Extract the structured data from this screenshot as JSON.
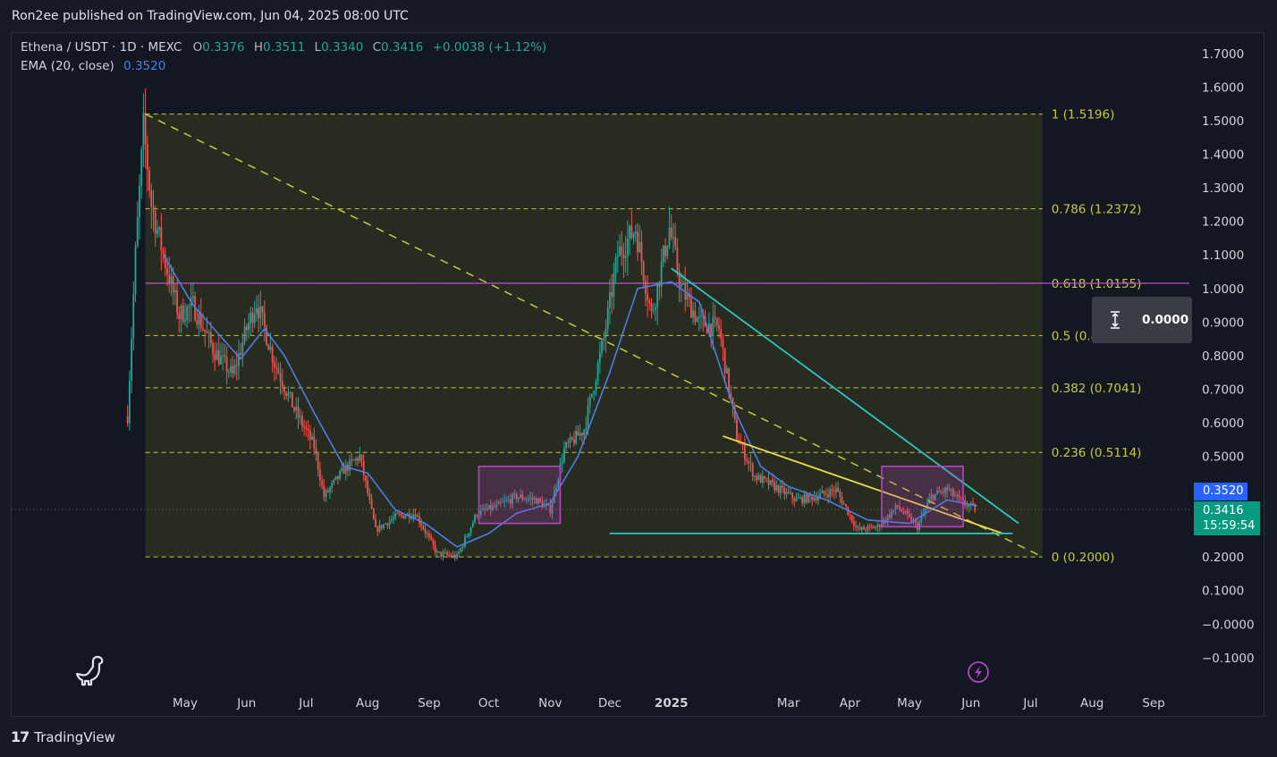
{
  "header": {
    "publisher": "Ron2ee published on TradingView.com, Jun 04, 2025 08:00 UTC"
  },
  "legend": {
    "symbol": "Ethena / USDT · 1D · MEXC",
    "open_key": "O",
    "open": "0.3376",
    "high_key": "H",
    "high": "0.3511",
    "low_key": "L",
    "low": "0.3340",
    "close_key": "C",
    "close": "0.3416",
    "change": "+0.0038 (+1.12%)",
    "ema_label": "EMA (20, close)",
    "ema_value": "0.3520"
  },
  "price_tags": {
    "ema": "0.3520",
    "last": "0.3416",
    "countdown": "15:59:54"
  },
  "measure_tool": {
    "value": "0.0000"
  },
  "footer": {
    "brand": "TradingView",
    "logo_icon": "tradingview-logo-icon"
  },
  "colors": {
    "up": "#26a69a",
    "down": "#ef5350",
    "ema": "#4a7ee8",
    "fib": "#c9c93b",
    "cyan": "#2ec4c4",
    "yellow": "#e8d94a",
    "magenta": "#b545c6"
  },
  "chart_data": {
    "type": "candlestick",
    "y_axis": {
      "range": [
        -0.1,
        1.7
      ],
      "ticks": [
        1.7,
        1.6,
        1.5,
        1.4,
        1.3,
        1.2,
        1.1,
        1.0,
        0.9,
        0.8,
        0.7,
        0.6,
        0.5,
        0.2,
        0.1,
        0.0,
        -0.1
      ],
      "tick_labels": [
        "1.7000",
        "1.6000",
        "1.5000",
        "1.4000",
        "1.3000",
        "1.2000",
        "1.1000",
        "1.0000",
        "0.9000",
        "0.8000",
        "0.7000",
        "0.6000",
        "0.5000",
        "0.2000",
        "0.1000",
        "−0.0000",
        "−0.1000"
      ]
    },
    "x_axis": {
      "start": "2024-04-02",
      "end": "2025-09-28",
      "ticks": [
        {
          "label": "May",
          "date": "2024-05-01"
        },
        {
          "label": "Jun",
          "date": "2024-06-01"
        },
        {
          "label": "Jul",
          "date": "2024-07-01"
        },
        {
          "label": "Aug",
          "date": "2024-08-01"
        },
        {
          "label": "Sep",
          "date": "2024-09-01"
        },
        {
          "label": "Oct",
          "date": "2024-10-01"
        },
        {
          "label": "Nov",
          "date": "2024-11-01"
        },
        {
          "label": "Dec",
          "date": "2024-12-01"
        },
        {
          "label": "2025",
          "date": "2025-01-01",
          "bold": true
        },
        {
          "label": "Mar",
          "date": "2025-03-01"
        },
        {
          "label": "Apr",
          "date": "2025-04-01"
        },
        {
          "label": "May",
          "date": "2025-05-01"
        },
        {
          "label": "Jun",
          "date": "2025-06-01"
        },
        {
          "label": "Jul",
          "date": "2025-07-01"
        },
        {
          "label": "Aug",
          "date": "2025-08-01"
        },
        {
          "label": "Sep",
          "date": "2025-09-01"
        }
      ]
    },
    "price_path": [
      {
        "date": "2024-04-02",
        "price": 0.62
      },
      {
        "date": "2024-04-06",
        "price": 1.1
      },
      {
        "date": "2024-04-10",
        "price": 1.48
      },
      {
        "date": "2024-04-14",
        "price": 1.25
      },
      {
        "date": "2024-04-20",
        "price": 1.1
      },
      {
        "date": "2024-04-28",
        "price": 0.92
      },
      {
        "date": "2024-05-05",
        "price": 0.95
      },
      {
        "date": "2024-05-15",
        "price": 0.82
      },
      {
        "date": "2024-05-25",
        "price": 0.74
      },
      {
        "date": "2024-06-01",
        "price": 0.88
      },
      {
        "date": "2024-06-06",
        "price": 0.96
      },
      {
        "date": "2024-06-15",
        "price": 0.78
      },
      {
        "date": "2024-06-25",
        "price": 0.64
      },
      {
        "date": "2024-07-05",
        "price": 0.53
      },
      {
        "date": "2024-07-10",
        "price": 0.38
      },
      {
        "date": "2024-07-20",
        "price": 0.46
      },
      {
        "date": "2024-07-28",
        "price": 0.5
      },
      {
        "date": "2024-08-05",
        "price": 0.28
      },
      {
        "date": "2024-08-15",
        "price": 0.32
      },
      {
        "date": "2024-08-25",
        "price": 0.33
      },
      {
        "date": "2024-09-05",
        "price": 0.21
      },
      {
        "date": "2024-09-15",
        "price": 0.2
      },
      {
        "date": "2024-09-25",
        "price": 0.33
      },
      {
        "date": "2024-10-05",
        "price": 0.35
      },
      {
        "date": "2024-10-15",
        "price": 0.38
      },
      {
        "date": "2024-10-25",
        "price": 0.37
      },
      {
        "date": "2024-11-01",
        "price": 0.34
      },
      {
        "date": "2024-11-08",
        "price": 0.52
      },
      {
        "date": "2024-11-18",
        "price": 0.58
      },
      {
        "date": "2024-11-28",
        "price": 0.85
      },
      {
        "date": "2024-12-05",
        "price": 1.1
      },
      {
        "date": "2024-12-14",
        "price": 1.18
      },
      {
        "date": "2024-12-22",
        "price": 0.92
      },
      {
        "date": "2024-12-31",
        "price": 1.18
      },
      {
        "date": "2025-01-06",
        "price": 1.0
      },
      {
        "date": "2025-01-15",
        "price": 0.9
      },
      {
        "date": "2025-01-25",
        "price": 0.88
      },
      {
        "date": "2025-02-03",
        "price": 0.56
      },
      {
        "date": "2025-02-12",
        "price": 0.44
      },
      {
        "date": "2025-02-22",
        "price": 0.41
      },
      {
        "date": "2025-03-05",
        "price": 0.37
      },
      {
        "date": "2025-03-15",
        "price": 0.38
      },
      {
        "date": "2025-03-25",
        "price": 0.4
      },
      {
        "date": "2025-04-05",
        "price": 0.28
      },
      {
        "date": "2025-04-15",
        "price": 0.29
      },
      {
        "date": "2025-04-25",
        "price": 0.35
      },
      {
        "date": "2025-05-05",
        "price": 0.29
      },
      {
        "date": "2025-05-12",
        "price": 0.38
      },
      {
        "date": "2025-05-20",
        "price": 0.4
      },
      {
        "date": "2025-05-28",
        "price": 0.36
      },
      {
        "date": "2025-06-04",
        "price": 0.3416
      }
    ],
    "ema_path": [
      {
        "date": "2024-04-20",
        "price": 1.1
      },
      {
        "date": "2024-05-05",
        "price": 0.95
      },
      {
        "date": "2024-05-20",
        "price": 0.85
      },
      {
        "date": "2024-05-29",
        "price": 0.79
      },
      {
        "date": "2024-06-10",
        "price": 0.88
      },
      {
        "date": "2024-06-20",
        "price": 0.8
      },
      {
        "date": "2024-07-05",
        "price": 0.63
      },
      {
        "date": "2024-07-20",
        "price": 0.47
      },
      {
        "date": "2024-08-01",
        "price": 0.45
      },
      {
        "date": "2024-08-15",
        "price": 0.34
      },
      {
        "date": "2024-08-30",
        "price": 0.3
      },
      {
        "date": "2024-09-15",
        "price": 0.23
      },
      {
        "date": "2024-10-01",
        "price": 0.27
      },
      {
        "date": "2024-10-15",
        "price": 0.33
      },
      {
        "date": "2024-11-01",
        "price": 0.36
      },
      {
        "date": "2024-11-15",
        "price": 0.5
      },
      {
        "date": "2024-12-01",
        "price": 0.75
      },
      {
        "date": "2024-12-15",
        "price": 1.0
      },
      {
        "date": "2025-01-01",
        "price": 1.02
      },
      {
        "date": "2025-01-15",
        "price": 0.96
      },
      {
        "date": "2025-02-01",
        "price": 0.65
      },
      {
        "date": "2025-02-15",
        "price": 0.47
      },
      {
        "date": "2025-03-01",
        "price": 0.41
      },
      {
        "date": "2025-03-20",
        "price": 0.37
      },
      {
        "date": "2025-04-10",
        "price": 0.31
      },
      {
        "date": "2025-05-01",
        "price": 0.3
      },
      {
        "date": "2025-05-20",
        "price": 0.37
      },
      {
        "date": "2025-06-04",
        "price": 0.352
      }
    ],
    "fib_levels": [
      {
        "ratio": 1,
        "price": 1.5196,
        "label": "1 (1.5196)"
      },
      {
        "ratio": 0.786,
        "price": 1.2372,
        "label": "0.786 (1.2372)"
      },
      {
        "ratio": 0.618,
        "price": 1.0155,
        "label": "0.618 (1.0155)"
      },
      {
        "ratio": 0.5,
        "price": 0.8598,
        "label": "0.5 (0.8598)"
      },
      {
        "ratio": 0.382,
        "price": 0.7041,
        "label": "0.382 (0.7041)"
      },
      {
        "ratio": 0.236,
        "price": 0.5114,
        "label": "0.236 (0.5114)"
      },
      {
        "ratio": 0,
        "price": 0.2,
        "label": "0 (0.2000)"
      }
    ],
    "fib_range": {
      "start": "2024-04-11",
      "end": "2025-07-07"
    },
    "horizontal_line": {
      "price": 1.0155
    },
    "trendlines": [
      {
        "name": "",
        "color": "#c9c93b",
        "dashed": true,
        "from": {
          "date": "2024-04-11",
          "price": 1.5196
        },
        "to": {
          "date": "2025-07-07",
          "price": 0.2
        }
      },
      {
        "name": "",
        "color": "#2ec4c4",
        "dashed": false,
        "from": {
          "date": "2025-01-01",
          "price": 1.06
        },
        "to": {
          "date": "2025-06-25",
          "price": 0.3
        }
      },
      {
        "name": "",
        "color": "#e8d94a",
        "dashed": false,
        "from": {
          "date": "2025-01-27",
          "price": 0.56
        },
        "to": {
          "date": "2025-06-17",
          "price": 0.27
        }
      },
      {
        "name": "",
        "color": "#2ec4c4",
        "dashed": false,
        "from": {
          "date": "2024-12-01",
          "price": 0.27
        },
        "to": {
          "date": "2025-06-22",
          "price": 0.27
        }
      }
    ],
    "rectangles": [
      {
        "from": {
          "date": "2024-09-26",
          "price": 0.47
        },
        "to": {
          "date": "2024-11-06",
          "price": 0.3
        }
      },
      {
        "from": {
          "date": "2025-04-17",
          "price": 0.47
        },
        "to": {
          "date": "2025-05-28",
          "price": 0.29
        }
      }
    ],
    "last_price": 0.3416,
    "ema_value": 0.352
  }
}
